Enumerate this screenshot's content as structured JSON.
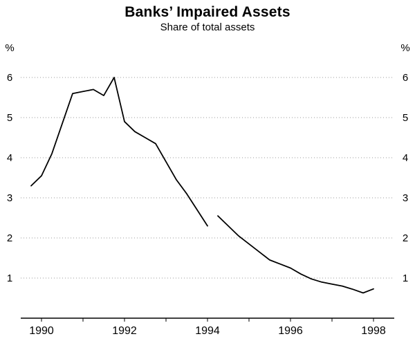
{
  "chart_data": {
    "type": "line",
    "title": "Banks’ Impaired Assets",
    "subtitle": "Share of total assets",
    "unit_label": "%",
    "line_color": "#000000",
    "gridline_color": "#999999",
    "axis_color": "#000000",
    "legend_position": "none",
    "grid": "horizontal-dotted",
    "x_axis": {
      "min": 1989.5,
      "max": 1998.5,
      "tick_years": [
        1990,
        1991,
        1992,
        1993,
        1994,
        1995,
        1996,
        1997,
        1998
      ],
      "label_years": [
        1990,
        1992,
        1994,
        1996,
        1998
      ],
      "labels": [
        "1990",
        "1992",
        "1994",
        "1996",
        "1998"
      ]
    },
    "y_axis": {
      "min": 0,
      "max": 6.5,
      "ticks": [
        1,
        2,
        3,
        4,
        5,
        6
      ]
    },
    "series": [
      {
        "name": "impaired-assets-pre-break",
        "x": [
          1989.75,
          1990.0,
          1990.25,
          1990.5,
          1990.75,
          1991.0,
          1991.25,
          1991.5,
          1991.75,
          1992.0,
          1992.25,
          1992.5,
          1992.75,
          1993.0,
          1993.25,
          1993.5,
          1993.75,
          1994.0
        ],
        "values": [
          3.3,
          3.55,
          4.1,
          4.85,
          5.6,
          5.65,
          5.7,
          5.55,
          6.0,
          4.9,
          4.65,
          4.5,
          4.35,
          3.9,
          3.45,
          3.1,
          2.7,
          2.3
        ]
      },
      {
        "name": "impaired-assets-post-break",
        "x": [
          1994.25,
          1994.5,
          1994.75,
          1995.0,
          1995.25,
          1995.5,
          1995.75,
          1996.0,
          1996.25,
          1996.5,
          1996.75,
          1997.0,
          1997.25,
          1997.5,
          1997.75,
          1998.0
        ],
        "values": [
          2.55,
          2.3,
          2.05,
          1.85,
          1.65,
          1.45,
          1.35,
          1.25,
          1.1,
          0.98,
          0.9,
          0.85,
          0.8,
          0.72,
          0.63,
          0.73
        ]
      }
    ]
  }
}
